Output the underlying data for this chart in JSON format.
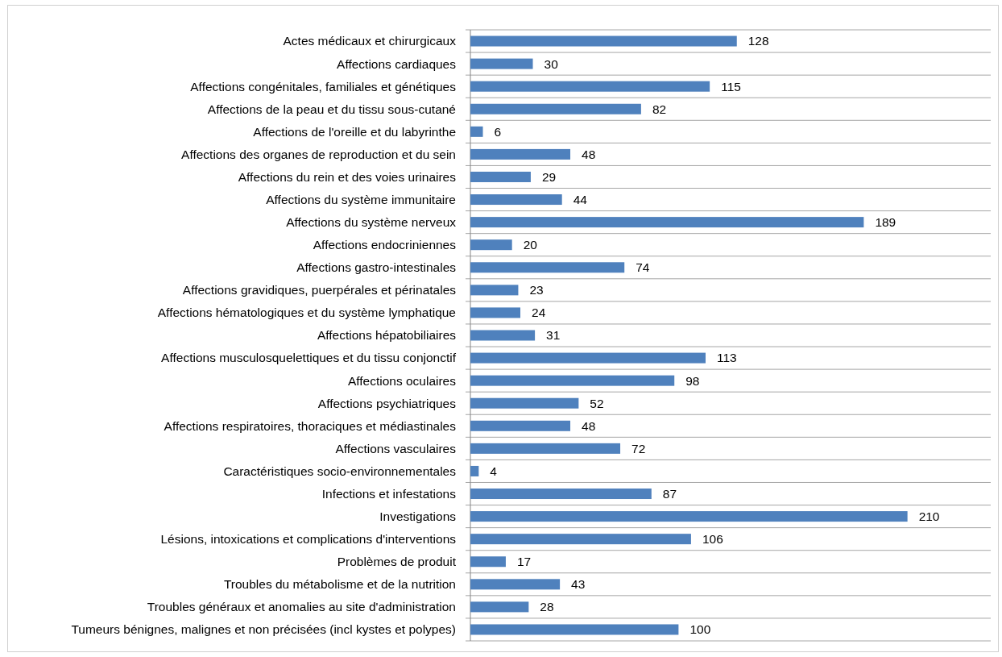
{
  "chart_data": {
    "type": "bar",
    "orientation": "horizontal",
    "categories": [
      "Actes médicaux et chirurgicaux",
      "Affections cardiaques",
      "Affections congénitales, familiales et génétiques",
      "Affections de la peau et du tissu sous-cutané",
      "Affections de l'oreille et du labyrinthe",
      "Affections des organes de reproduction et du sein",
      "Affections du rein et des voies urinaires",
      "Affections du système immunitaire",
      "Affections du système nerveux",
      "Affections endocriniennes",
      "Affections gastro-intestinales",
      "Affections gravidiques, puerpérales et périnatales",
      "Affections hématologiques et du système lymphatique",
      "Affections hépatobiliaires",
      "Affections musculosquelettiques et du tissu conjonctif",
      "Affections oculaires",
      "Affections psychiatriques",
      "Affections respiratoires, thoraciques et médiastinales",
      "Affections vasculaires",
      "Caractéristiques socio-environnementales",
      "Infections et infestations",
      "Investigations",
      "Lésions, intoxications et complications d'interventions",
      "Problèmes de produit",
      "Troubles du métabolisme et de la nutrition",
      "Troubles généraux et anomalies au site d'administration",
      "Tumeurs bénignes, malignes et non précisées (incl kystes et polypes)"
    ],
    "values": [
      128,
      30,
      115,
      82,
      6,
      48,
      29,
      44,
      189,
      20,
      74,
      23,
      24,
      31,
      113,
      98,
      52,
      48,
      72,
      4,
      87,
      210,
      106,
      17,
      43,
      28,
      100
    ],
    "color": "#4f81bd",
    "xlim": [
      0,
      250
    ],
    "tick_labels": "y",
    "grid": "y",
    "data_labels": true
  }
}
